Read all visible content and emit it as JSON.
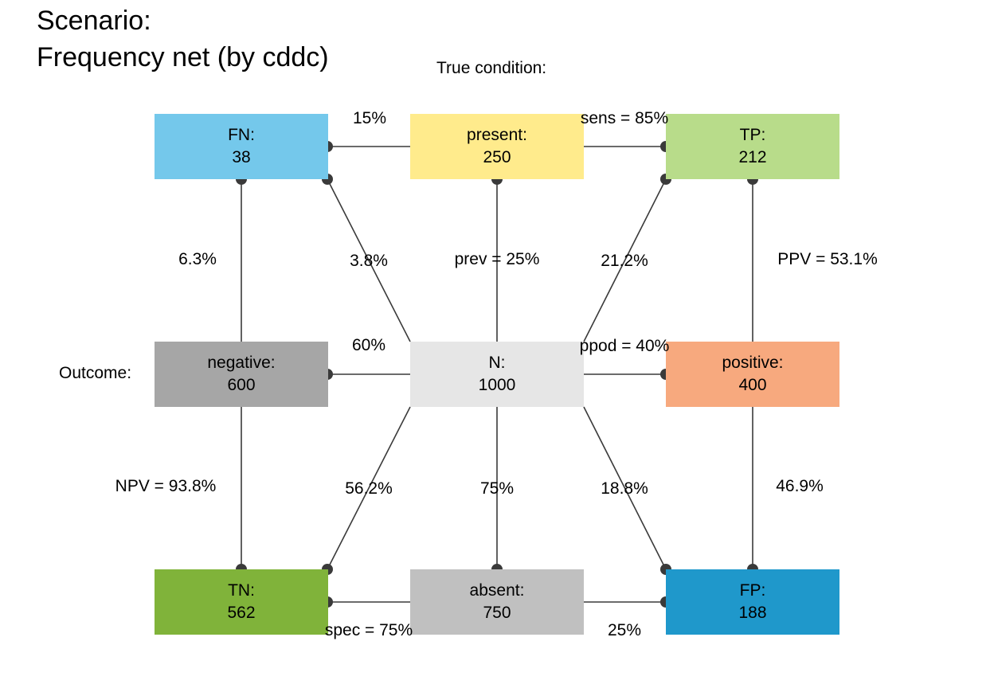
{
  "title": {
    "line1": "Scenario:",
    "line2": "Frequency net (by cddc)"
  },
  "captions": {
    "condition": "True condition:",
    "outcome": "Outcome:"
  },
  "boxes": {
    "fn": {
      "name": "FN:",
      "value": "38",
      "color": "#74c8eb"
    },
    "present": {
      "name": "present:",
      "value": "250",
      "color": "#ffeb8c"
    },
    "tp": {
      "name": "TP:",
      "value": "212",
      "color": "#b8dc8a"
    },
    "negative": {
      "name": "negative:",
      "value": "600",
      "color": "#a6a6a6"
    },
    "n": {
      "name": "N:",
      "value": "1000",
      "color": "#e6e6e6"
    },
    "positive": {
      "name": "positive:",
      "value": "400",
      "color": "#f7a97e"
    },
    "tn": {
      "name": "TN:",
      "value": "562",
      "color": "#80b33a"
    },
    "absent": {
      "name": "absent:",
      "value": "750",
      "color": "#c0c0c0"
    },
    "fp": {
      "name": "FP:",
      "value": "188",
      "color": "#1f98cb"
    }
  },
  "labels": {
    "fn_rate": "15%",
    "sens": "sens = 85%",
    "fn_share_neg": "6.3%",
    "fn_share_n": "3.8%",
    "prev": "prev = 25%",
    "tp_share_n": "21.2%",
    "ppv": "PPV = 53.1%",
    "neg_share": "60%",
    "ppod": "ppod = 40%",
    "npv": "NPV = 93.8%",
    "tn_share_n": "56.2%",
    "absent_share": "75%",
    "fp_share_n": "18.8%",
    "fp_share_pos": "46.9%",
    "spec": "spec = 75%",
    "fp_rate": "25%"
  },
  "colors": {
    "line": "#3a3a3a",
    "dot": "#3a3a3a"
  }
}
